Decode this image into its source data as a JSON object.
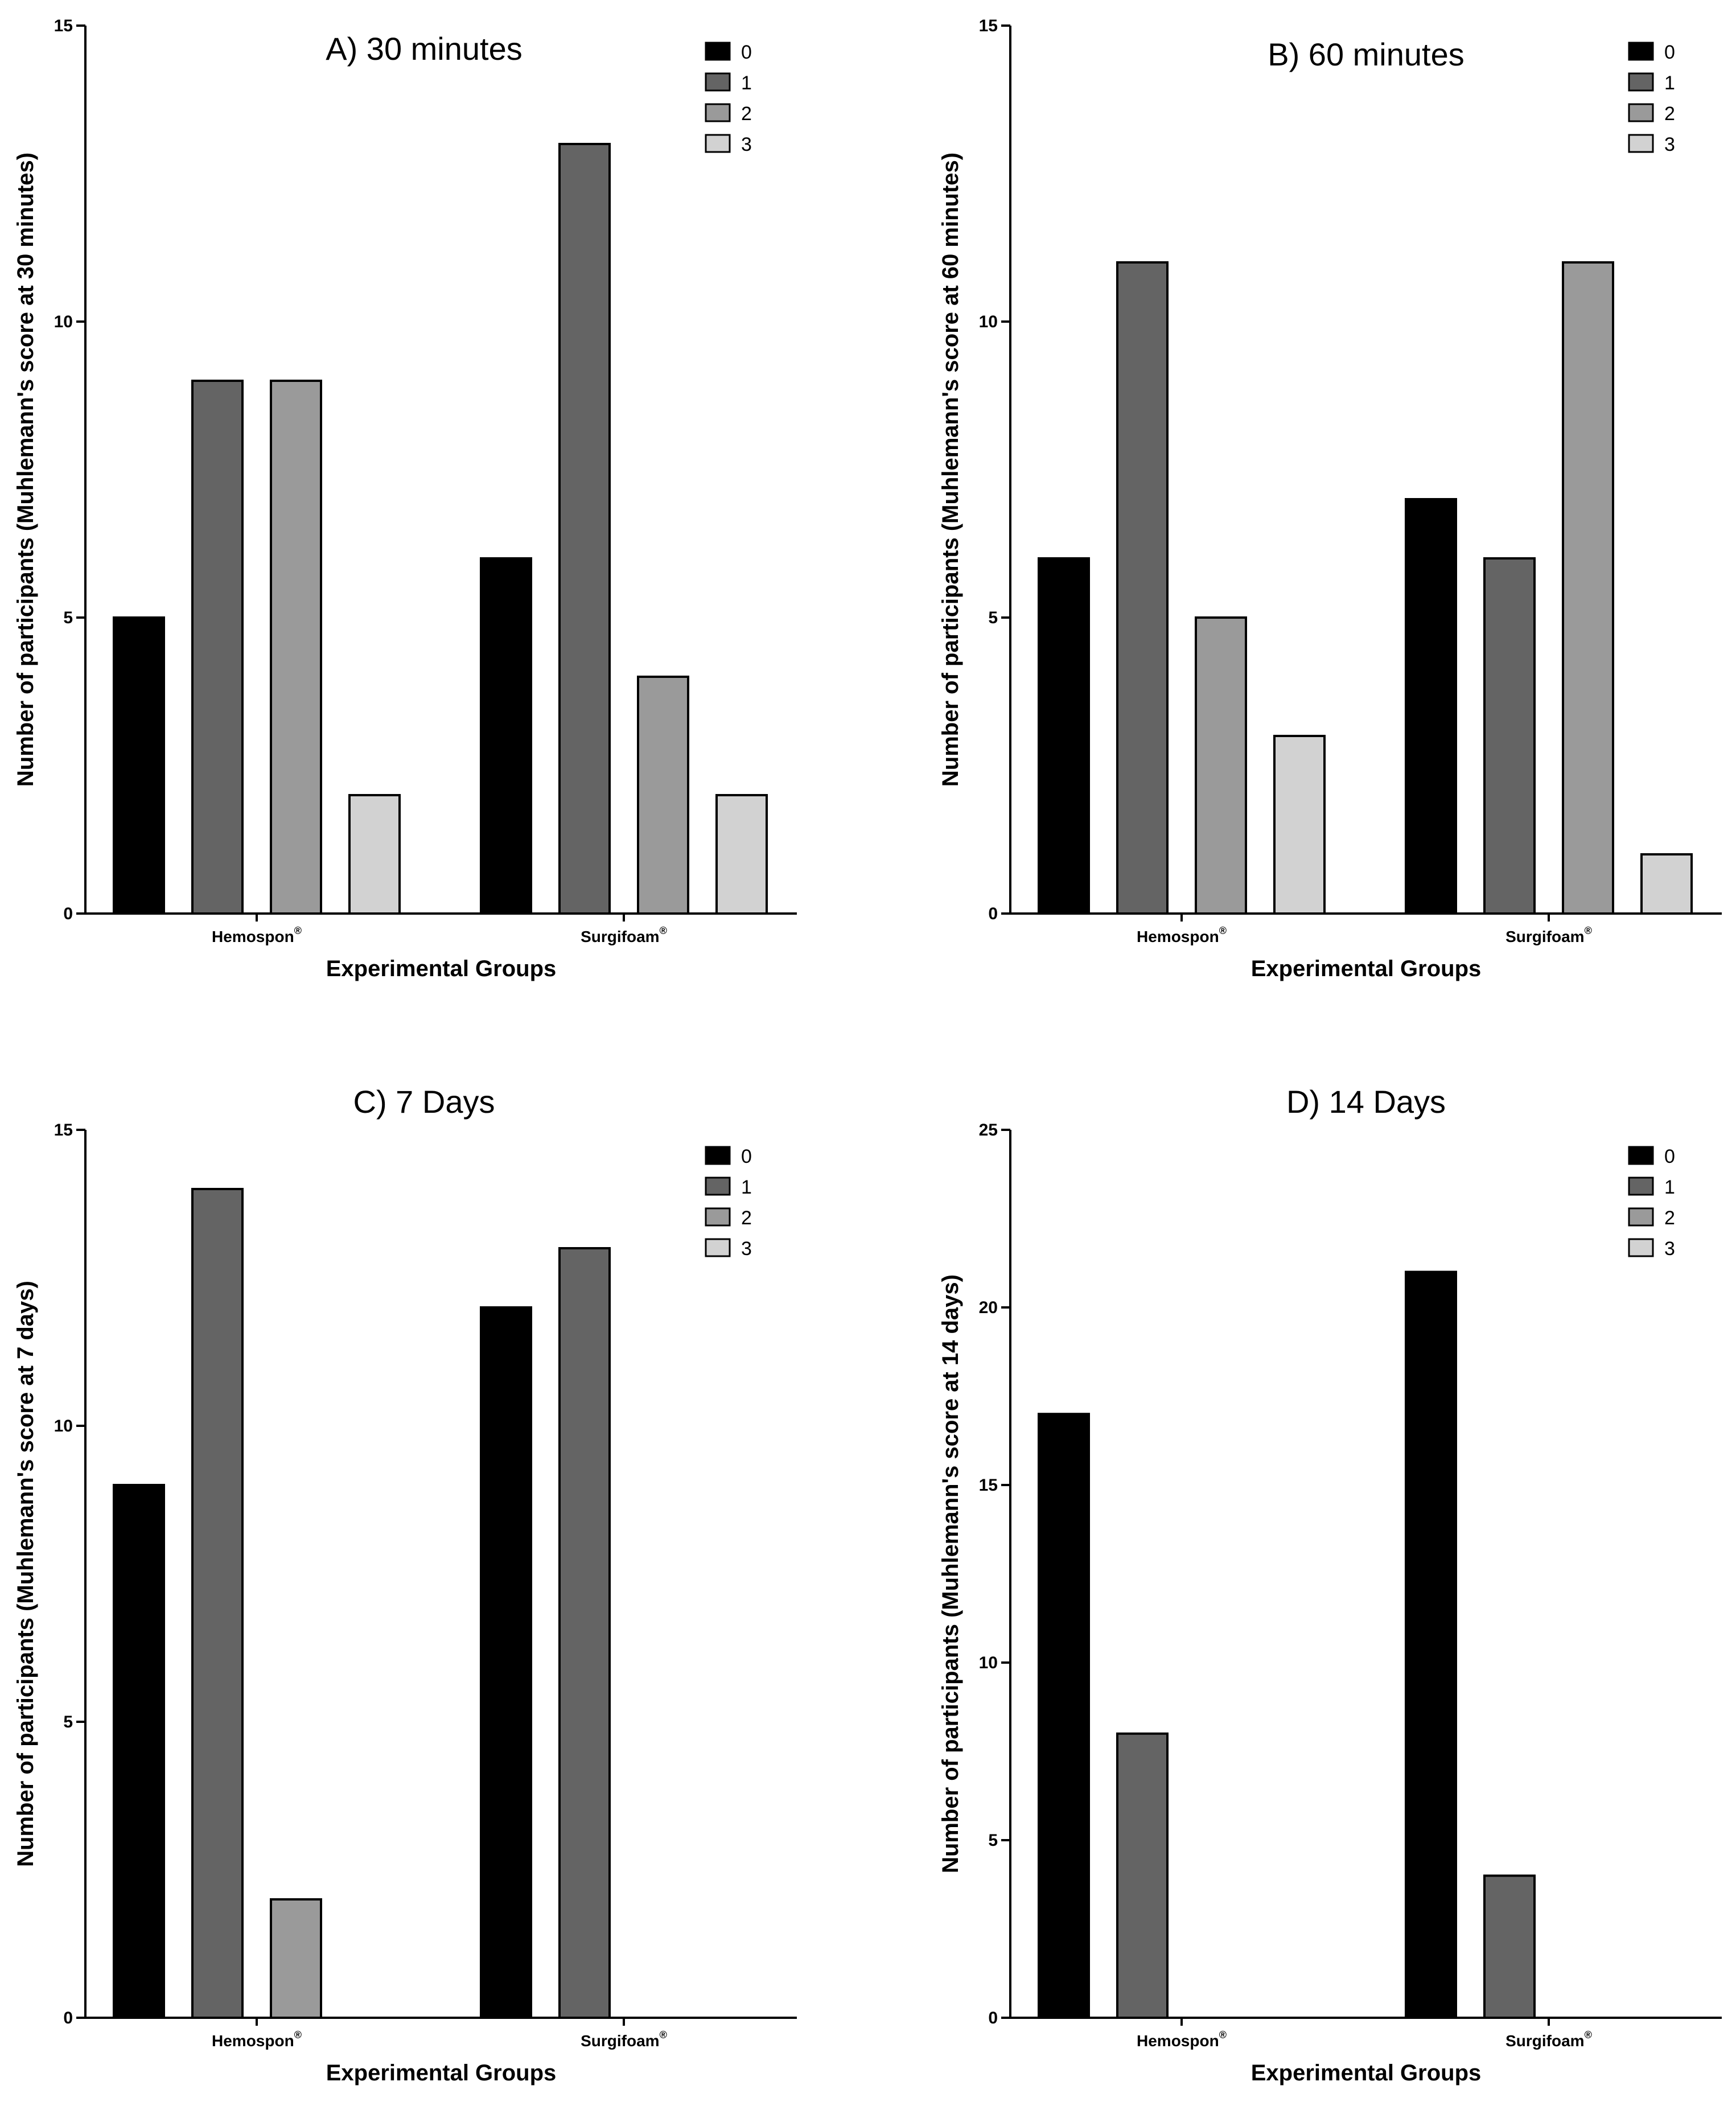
{
  "chart_data": [
    {
      "type": "bar",
      "title": "A) 30 minutes",
      "categories": [
        "Hemospon",
        "Surgifoam"
      ],
      "category_superscript": "®",
      "series": [
        {
          "name": "0",
          "values": [
            5,
            6
          ],
          "color": "#000000"
        },
        {
          "name": "1",
          "values": [
            9,
            13
          ],
          "color": "#646464"
        },
        {
          "name": "2",
          "values": [
            9,
            4
          ],
          "color": "#9a9a9a"
        },
        {
          "name": "3",
          "values": [
            2,
            2
          ],
          "color": "#d2d2d2"
        }
      ],
      "xlabel": "Experimental Groups",
      "ylabel": "Number of participants (Muhlemann's score at 30 minutes)",
      "ylim": [
        0,
        15
      ],
      "yticks": [
        0,
        5,
        10,
        15
      ],
      "legend": "top-right",
      "grid": false
    },
    {
      "type": "bar",
      "title": "B) 60 minutes",
      "categories": [
        "Hemospon",
        "Surgifoam"
      ],
      "category_superscript": "®",
      "series": [
        {
          "name": "0",
          "values": [
            6,
            7
          ],
          "color": "#000000"
        },
        {
          "name": "1",
          "values": [
            11,
            6
          ],
          "color": "#646464"
        },
        {
          "name": "2",
          "values": [
            5,
            11
          ],
          "color": "#9a9a9a"
        },
        {
          "name": "3",
          "values": [
            3,
            1
          ],
          "color": "#d2d2d2"
        }
      ],
      "xlabel": "Experimental Groups",
      "ylabel": "Number of participants (Muhlemann's score at 60 minutes)",
      "ylim": [
        0,
        15
      ],
      "yticks": [
        0,
        5,
        10,
        15
      ],
      "legend": "top-right",
      "grid": false
    },
    {
      "type": "bar",
      "title": "C) 7 Days",
      "categories": [
        "Hemospon",
        "Surgifoam"
      ],
      "category_superscript": "®",
      "series": [
        {
          "name": "0",
          "values": [
            9,
            12
          ],
          "color": "#000000"
        },
        {
          "name": "1",
          "values": [
            14,
            13
          ],
          "color": "#646464"
        },
        {
          "name": "2",
          "values": [
            2,
            0
          ],
          "color": "#9a9a9a"
        },
        {
          "name": "3",
          "values": [
            0,
            0
          ],
          "color": "#d2d2d2"
        }
      ],
      "xlabel": "Experimental Groups",
      "ylabel": "Number of participants (Muhlemann's score at 7 days)",
      "ylim": [
        0,
        15
      ],
      "yticks": [
        0,
        5,
        10,
        15
      ],
      "legend": "top-right",
      "grid": false
    },
    {
      "type": "bar",
      "title": "D) 14 Days",
      "categories": [
        "Hemospon",
        "Surgifoam"
      ],
      "category_superscript": "®",
      "series": [
        {
          "name": "0",
          "values": [
            17,
            21
          ],
          "color": "#000000"
        },
        {
          "name": "1",
          "values": [
            8,
            4
          ],
          "color": "#646464"
        },
        {
          "name": "2",
          "values": [
            0,
            0
          ],
          "color": "#9a9a9a"
        },
        {
          "name": "3",
          "values": [
            0,
            0
          ],
          "color": "#d2d2d2"
        }
      ],
      "xlabel": "Experimental Groups",
      "ylabel": "Number of participants (Muhlemann's score at 14 days)",
      "ylim": [
        0,
        25
      ],
      "yticks": [
        0,
        5,
        10,
        15,
        20,
        25
      ],
      "legend": "top-right",
      "grid": false
    }
  ]
}
